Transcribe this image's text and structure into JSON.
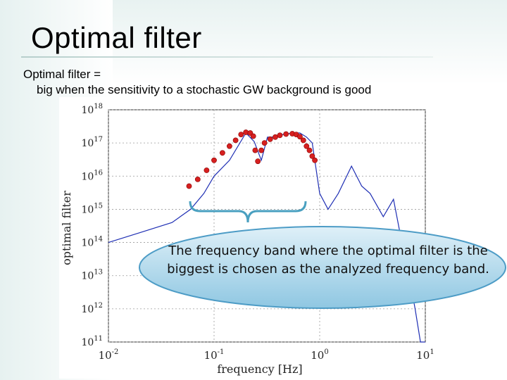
{
  "slide": {
    "title": "Optimal filter",
    "line1": "Optimal filter =",
    "line2": "big when the sensitivity to a stochastic GW background is good",
    "callout": "The frequency band where the optimal filter is the biggest is chosen as the analyzed frequency band."
  },
  "chart_data": {
    "type": "line",
    "xlabel": "frequency [Hz]",
    "ylabel": "optimal filter",
    "x_scale": "log",
    "y_scale": "log",
    "xlim": [
      0.01,
      10
    ],
    "ylim": [
      100000000000.0,
      1e+18
    ],
    "grid": true,
    "x_ticks": [
      "10-2",
      "10-1",
      "100",
      "101"
    ],
    "y_ticks": [
      "1011",
      "1012",
      "1013",
      "1014",
      "1015",
      "1016",
      "1017",
      "1018"
    ],
    "colors": {
      "line": "#1f2fb4",
      "markers": "#d62020"
    },
    "series": [
      {
        "values_x": [
          0.01,
          0.02,
          0.04,
          0.06,
          0.08,
          0.1,
          0.14,
          0.2,
          0.24,
          0.28,
          0.32,
          0.38,
          0.45,
          0.55,
          0.65,
          0.75,
          0.85,
          1.0,
          1.2,
          1.5,
          2.0,
          2.5,
          3.0,
          4.0,
          5.0,
          6.0,
          7.0,
          8.0,
          9.0,
          10.0
        ],
        "values_y": [
          100000000000000.0,
          200000000000000.0,
          400000000000000.0,
          1000000000000000.0,
          3000000000000000.0,
          1e+16,
          3e+16,
          2e+17,
          1.1e+17,
          3e+16,
          1.5e+17,
          1.5e+17,
          1.8e+17,
          2e+17,
          2e+17,
          1.5e+17,
          1e+17,
          3000000000000000.0,
          1000000000000000.0,
          3000000000000000.0,
          2e+16,
          5000000000000000.0,
          3000000000000000.0,
          600000000000000.0,
          2000000000000000.0,
          100000000000000.0,
          10000000000000.0,
          1000000000000.0,
          100000000000.0,
          100000000000.0
        ]
      },
      {
        "values_x": [
          0.058,
          0.07,
          0.085,
          0.1,
          0.12,
          0.14,
          0.16,
          0.18,
          0.2,
          0.22,
          0.235,
          0.245,
          0.26,
          0.28,
          0.3,
          0.34,
          0.38,
          0.42,
          0.48,
          0.55,
          0.6,
          0.65,
          0.7,
          0.75,
          0.8,
          0.85,
          0.9
        ],
        "values_y": [
          5000000000000000.0,
          8000000000000000.0,
          1.5e+16,
          3e+16,
          5e+16,
          8e+16,
          1.2e+17,
          1.8e+17,
          2.1e+17,
          2e+17,
          1.6e+17,
          6e+16,
          2.8e+16,
          6e+16,
          1e+17,
          1.3e+17,
          1.5e+17,
          1.7e+17,
          1.85e+17,
          1.9e+17,
          1.8e+17,
          1.55e+17,
          1.2e+17,
          8e+16,
          6e+16,
          4e+16,
          3e+16
        ]
      }
    ]
  }
}
